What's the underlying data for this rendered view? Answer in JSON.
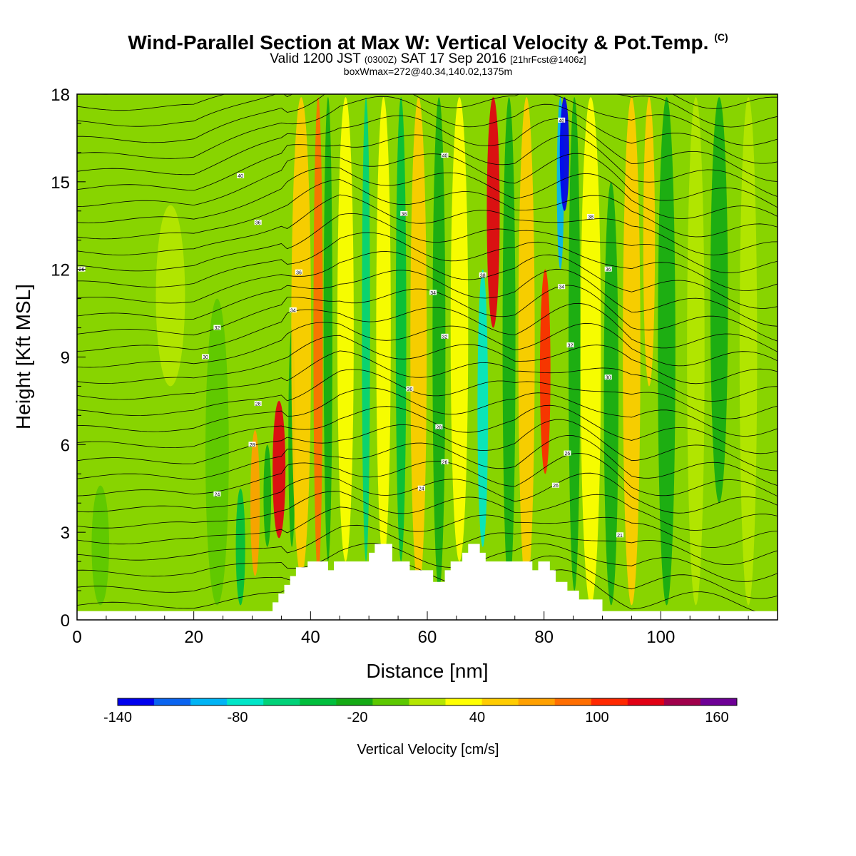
{
  "header": {
    "title": "Wind-Parallel Section at Max W: Vertical Velocity & Pot.Temp.",
    "copyright": "(C)",
    "valid_prefix": "Valid 1200 JST",
    "utc": "(0300Z)",
    "date": "SAT 17 Sep 2016",
    "forecast": "[21hrFcst@1406z]",
    "box_info": "boxWmax=272@40.34,140.02,1375m"
  },
  "chart_data": {
    "type": "heatmap",
    "xlabel": "Distance [nm]",
    "ylabel": "Height [Kft MSL]",
    "xlim": [
      0,
      120
    ],
    "ylim": [
      0,
      18
    ],
    "x_ticks": [
      0,
      20,
      40,
      60,
      80,
      100
    ],
    "y_ticks": [
      0,
      3,
      6,
      9,
      12,
      15,
      18
    ],
    "background_fill": "#88d400",
    "velocity_bands": [
      {
        "x": 4,
        "w": 3,
        "y0": 0.5,
        "y1": 4.6,
        "v": 0
      },
      {
        "x": 16,
        "w": 5,
        "y0": 8,
        "y1": 14.2,
        "v": 10
      },
      {
        "x": 24,
        "w": 4,
        "y0": 0.5,
        "y1": 11,
        "v": 0
      },
      {
        "x": 28,
        "w": 1.6,
        "y0": 0.5,
        "y1": 4.5,
        "v": -40
      },
      {
        "x": 30.5,
        "w": 1.6,
        "y0": 1.5,
        "y1": 6.5,
        "v": 70
      },
      {
        "x": 32.6,
        "w": 1.3,
        "y0": 2.5,
        "y1": 6,
        "v": -30
      },
      {
        "x": 34.6,
        "w": 2.2,
        "y0": 2.8,
        "y1": 7.5,
        "v": 130
      },
      {
        "x": 36.8,
        "w": 1.2,
        "y0": 2.5,
        "y1": 10,
        "v": -20
      },
      {
        "x": 38.4,
        "w": 3.4,
        "y0": 1.5,
        "y1": 17.9,
        "v": 50
      },
      {
        "x": 41.3,
        "w": 1.6,
        "y0": 1.5,
        "y1": 17.9,
        "v": 80
      },
      {
        "x": 43,
        "w": 1.5,
        "y0": 2,
        "y1": 17.9,
        "v": -30
      },
      {
        "x": 46,
        "w": 2.8,
        "y0": 2,
        "y1": 17.9,
        "v": 40
      },
      {
        "x": 49.5,
        "w": 1.4,
        "y0": 2,
        "y1": 17.9,
        "v": -60
      },
      {
        "x": 52.5,
        "w": 2.5,
        "y0": 2,
        "y1": 17.9,
        "v": 30
      },
      {
        "x": 55.5,
        "w": 1.8,
        "y0": 2,
        "y1": 17.9,
        "v": -40
      },
      {
        "x": 58.5,
        "w": 2.8,
        "y0": 1,
        "y1": 17.9,
        "v": 50
      },
      {
        "x": 62,
        "w": 2.2,
        "y0": 1,
        "y1": 17.9,
        "v": -30
      },
      {
        "x": 65.5,
        "w": 3,
        "y0": 2,
        "y1": 17.9,
        "v": 40
      },
      {
        "x": 69.5,
        "w": 1.8,
        "y0": 2.5,
        "y1": 12,
        "v": -70
      },
      {
        "x": 71.3,
        "w": 2.2,
        "y0": 10,
        "y1": 17.9,
        "v": 120
      },
      {
        "x": 74,
        "w": 2.2,
        "y0": 1,
        "y1": 17.9,
        "v": -30
      },
      {
        "x": 77,
        "w": 2.8,
        "y0": 1,
        "y1": 17.9,
        "v": 60
      },
      {
        "x": 80.2,
        "w": 1.8,
        "y0": 5,
        "y1": 12,
        "v": 110
      },
      {
        "x": 82.8,
        "w": 1.2,
        "y0": 12,
        "y1": 17.9,
        "v": -100
      },
      {
        "x": 83.5,
        "w": 1.6,
        "y0": 14,
        "y1": 17.9,
        "v": -130
      },
      {
        "x": 85.2,
        "w": 2,
        "y0": 1,
        "y1": 17.9,
        "v": -30
      },
      {
        "x": 88,
        "w": 3.5,
        "y0": 0.5,
        "y1": 17.9,
        "v": 40
      },
      {
        "x": 91.5,
        "w": 2.5,
        "y0": 0.5,
        "y1": 15,
        "v": -20
      },
      {
        "x": 95,
        "w": 3,
        "y0": 0.5,
        "y1": 17.9,
        "v": 50
      },
      {
        "x": 98,
        "w": 2,
        "y0": 8,
        "y1": 17.9,
        "v": 60
      },
      {
        "x": 101,
        "w": 3,
        "y0": 0.5,
        "y1": 17.9,
        "v": -20
      },
      {
        "x": 106,
        "w": 3,
        "y0": 0.5,
        "y1": 17.9,
        "v": 20
      },
      {
        "x": 110,
        "w": 3,
        "y0": 4,
        "y1": 17.9,
        "v": -20
      },
      {
        "x": 115,
        "w": 3,
        "y0": 0.5,
        "y1": 17.9,
        "v": 20
      }
    ],
    "terrain": [
      [
        0,
        0.3
      ],
      [
        33.5,
        0.3
      ],
      [
        33.5,
        0.6
      ],
      [
        34.5,
        0.6
      ],
      [
        34.5,
        0.9
      ],
      [
        35.5,
        0.9
      ],
      [
        35.5,
        1.2
      ],
      [
        36.5,
        1.2
      ],
      [
        36.5,
        1.5
      ],
      [
        37.5,
        1.5
      ],
      [
        37.5,
        1.8
      ],
      [
        39.5,
        1.8
      ],
      [
        39.5,
        2.0
      ],
      [
        43,
        2.0
      ],
      [
        43,
        1.7
      ],
      [
        44,
        1.7
      ],
      [
        44,
        2.0
      ],
      [
        50,
        2.0
      ],
      [
        50,
        2.3
      ],
      [
        51,
        2.3
      ],
      [
        51,
        2.6
      ],
      [
        54,
        2.6
      ],
      [
        54,
        2.0
      ],
      [
        57,
        2.0
      ],
      [
        57,
        1.7
      ],
      [
        61,
        1.7
      ],
      [
        61,
        1.3
      ],
      [
        63,
        1.3
      ],
      [
        63,
        1.7
      ],
      [
        64,
        1.7
      ],
      [
        64,
        2.0
      ],
      [
        66,
        2.0
      ],
      [
        66,
        2.3
      ],
      [
        67,
        2.3
      ],
      [
        67,
        2.6
      ],
      [
        69,
        2.6
      ],
      [
        69,
        2.3
      ],
      [
        70,
        2.3
      ],
      [
        70,
        2.0
      ],
      [
        78,
        2.0
      ],
      [
        78,
        1.7
      ],
      [
        79,
        1.7
      ],
      [
        79,
        2.0
      ],
      [
        81,
        2.0
      ],
      [
        81,
        1.7
      ],
      [
        82,
        1.7
      ],
      [
        82,
        1.3
      ],
      [
        84,
        1.3
      ],
      [
        84,
        1.0
      ],
      [
        86,
        1.0
      ],
      [
        86,
        0.7
      ],
      [
        90,
        0.7
      ],
      [
        90,
        0.3
      ],
      [
        120,
        0.3
      ]
    ],
    "isentrope_labels": [
      {
        "x": 0.8,
        "y": 12.0,
        "text": "26"
      },
      {
        "x": 28,
        "y": 15.2,
        "text": "40"
      },
      {
        "x": 31,
        "y": 13.6,
        "text": "36"
      },
      {
        "x": 38,
        "y": 11.9,
        "text": "36"
      },
      {
        "x": 37,
        "y": 10.6,
        "text": "34"
      },
      {
        "x": 24,
        "y": 10.0,
        "text": "32"
      },
      {
        "x": 22,
        "y": 9.0,
        "text": "30"
      },
      {
        "x": 31,
        "y": 7.4,
        "text": "28"
      },
      {
        "x": 30,
        "y": 6.0,
        "text": "28"
      },
      {
        "x": 24,
        "y": 4.3,
        "text": "24"
      },
      {
        "x": 63,
        "y": 15.9,
        "text": "40"
      },
      {
        "x": 56,
        "y": 13.9,
        "text": "38"
      },
      {
        "x": 69.5,
        "y": 11.8,
        "text": "38"
      },
      {
        "x": 61,
        "y": 11.2,
        "text": "34"
      },
      {
        "x": 63,
        "y": 9.7,
        "text": "32"
      },
      {
        "x": 57,
        "y": 7.9,
        "text": "30"
      },
      {
        "x": 62,
        "y": 6.6,
        "text": "28"
      },
      {
        "x": 63,
        "y": 5.4,
        "text": "26"
      },
      {
        "x": 59,
        "y": 4.5,
        "text": "24"
      },
      {
        "x": 83,
        "y": 17.1,
        "text": "40"
      },
      {
        "x": 88,
        "y": 13.8,
        "text": "38"
      },
      {
        "x": 91,
        "y": 12.0,
        "text": "36"
      },
      {
        "x": 83,
        "y": 11.4,
        "text": "34"
      },
      {
        "x": 84.5,
        "y": 9.4,
        "text": "32"
      },
      {
        "x": 91,
        "y": 8.3,
        "text": "30"
      },
      {
        "x": 84,
        "y": 5.7,
        "text": "26"
      },
      {
        "x": 82,
        "y": 4.6,
        "text": "26"
      },
      {
        "x": 93,
        "y": 2.9,
        "text": "21"
      }
    ],
    "colorbar": {
      "title": "Vertical Velocity [cm/s]",
      "min": -140,
      "max": 170,
      "tick_labels": [
        "-140",
        "-80",
        "-20",
        "40",
        "100",
        "160"
      ],
      "colors": [
        "#0000ee",
        "#0a64f0",
        "#00b4f5",
        "#00e6c8",
        "#00d278",
        "#00be3c",
        "#14aa14",
        "#5cc800",
        "#b4e600",
        "#ffff00",
        "#ffcc00",
        "#ffa000",
        "#ff6e00",
        "#ff2800",
        "#e10014",
        "#a0004b",
        "#6e0096"
      ]
    }
  }
}
